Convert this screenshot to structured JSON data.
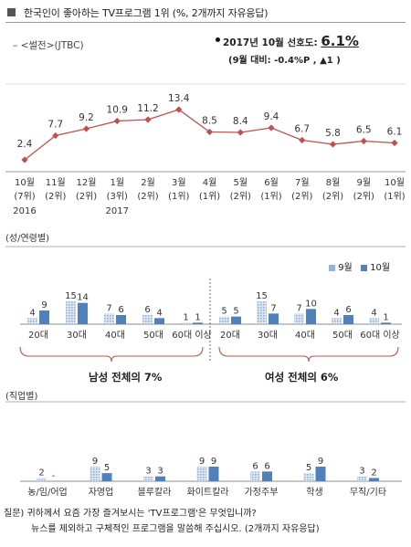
{
  "header": {
    "title": "한국인이 좋아하는 TV프로그램 1위 (%, 2개까지 자유응답)"
  },
  "legend_series_label": "– <썰전>(JTBC)",
  "preference": {
    "line1_prefix": "2017년 10월 선호도: ",
    "line1_value": "6.1%",
    "line2": "(9월 대비: -0.4%P , ▲1 )"
  },
  "colors": {
    "line": "#c0504d",
    "bar_oct": "#4f81bd",
    "bar_sep": "#95b3d7"
  },
  "chart_data": [
    {
      "type": "line",
      "series": [
        {
          "name": "<썰전>(JTBC)",
          "values": [
            2.4,
            7.7,
            9.2,
            10.9,
            11.2,
            13.4,
            8.5,
            8.4,
            9.4,
            6.7,
            5.8,
            6.5,
            6.1
          ]
        }
      ],
      "categories": [
        "10월",
        "11월",
        "12월",
        "1월",
        "2월",
        "3월",
        "4월",
        "5월",
        "6월",
        "7월",
        "8월",
        "9월",
        "10월"
      ],
      "ranks": [
        "(7위)",
        "(2위)",
        "(2위)",
        "(3위)",
        "(2위)",
        "(1위)",
        "(1위)",
        "(2위)",
        "(1위)",
        "(2위)",
        "(2위)",
        "(2위)",
        "(1위)"
      ],
      "years": [
        {
          "index": 0,
          "label": "2016"
        },
        {
          "index": 3,
          "label": "2017"
        }
      ]
    },
    {
      "type": "bar",
      "title": "(성/연령별)",
      "legend": [
        "9월",
        "10월"
      ],
      "categories": [
        "20대",
        "30대",
        "40대",
        "50대",
        "60대 이상",
        "20대",
        "30대",
        "40대",
        "50대",
        "60대 이상"
      ],
      "series": [
        {
          "name": "9월",
          "values": [
            4,
            15,
            7,
            6,
            1,
            5,
            15,
            7,
            4,
            4
          ]
        },
        {
          "name": "10월",
          "values": [
            9,
            14,
            6,
            4,
            1,
            5,
            7,
            10,
            6,
            1
          ]
        }
      ],
      "group_labels": [
        "남성 전체의 7%",
        "여성 전체의 6%"
      ]
    },
    {
      "type": "bar",
      "title": "(직업별)",
      "categories": [
        "농/임/어업",
        "자영업",
        "블루칼라",
        "화이트칼라",
        "가정주부",
        "학생",
        "무직/기타"
      ],
      "series": [
        {
          "name": "9월",
          "values": [
            2,
            9,
            3,
            9,
            6,
            5,
            3
          ]
        },
        {
          "name": "10월",
          "values": [
            null,
            5,
            3,
            9,
            6,
            9,
            2
          ]
        }
      ],
      "value_labels_oct": [
        "-",
        "5",
        "3",
        "9",
        "6",
        "9",
        "2"
      ]
    }
  ],
  "footer": {
    "line1": "질문) 귀하께서 요즘 가장 즐겨보시는 'TV프로그램'은 무엇입니까?",
    "line2": "뉴스를 제외하고 구체적인 프로그램을 말씀해 주십시오. (2개까지 자유응답)"
  }
}
